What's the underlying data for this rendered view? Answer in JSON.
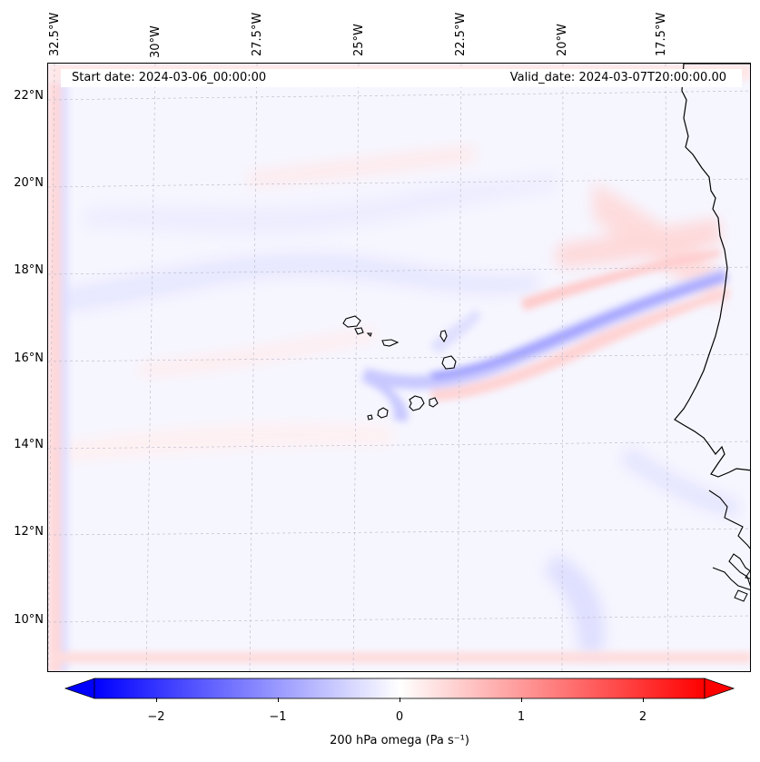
{
  "map": {
    "start_label": "Start date: 2024-03-06_00:00:00",
    "valid_label": "Valid_date: 2024-03-07T20:00:00.00",
    "region": {
      "lon_range": [
        -33,
        -15.5
      ],
      "lat_range": [
        9,
        22.5
      ]
    },
    "lat_ticks": [
      "22°N",
      "20°N",
      "18°N",
      "16°N",
      "14°N",
      "12°N",
      "10°N"
    ],
    "lon_ticks": [
      "32.5°W",
      "30°W",
      "27.5°W",
      "25°W",
      "22.5°W",
      "20°W",
      "17.5°W"
    ],
    "gridlines": true,
    "features": [
      "coastline-west-africa",
      "cape-verde-islands"
    ],
    "colors": {
      "coastline": "#000000",
      "negative": "#0000ff",
      "positive": "#ff0000",
      "zero": "#ffffff"
    }
  },
  "colorbar": {
    "label": "200 hPa omega (Pa s⁻¹)",
    "ticks": [
      "−2",
      "−1",
      "0",
      "1",
      "2"
    ],
    "range": [
      -2.5,
      2.5
    ],
    "extend": "both",
    "colormap": "bwr"
  }
}
